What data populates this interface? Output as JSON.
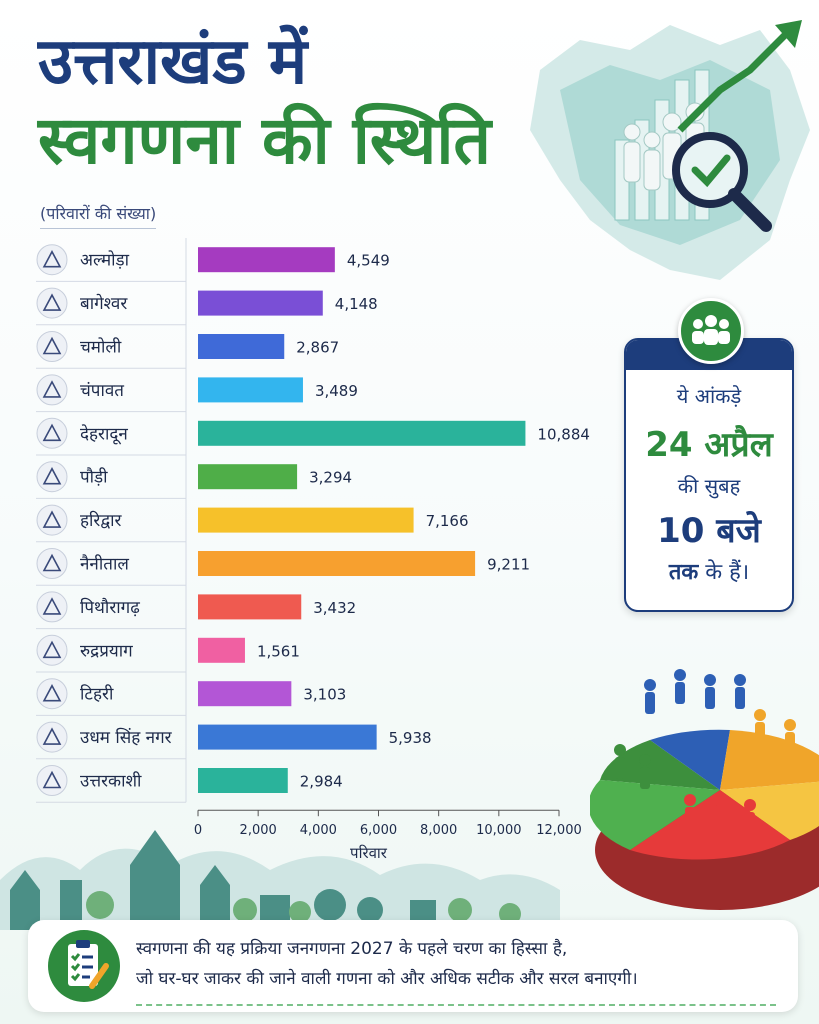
{
  "title_line1": "उत्तराखंड में",
  "title_line2": "स्वगणना की स्थिति",
  "subtitle": "(परिवारों की संख्या)",
  "chart_data": {
    "type": "bar",
    "orientation": "horizontal",
    "categories": [
      "अल्मोड़ा",
      "बागेश्वर",
      "चमोली",
      "चंपावत",
      "देहरादून",
      "पौड़ी",
      "हरिद्वार",
      "नैनीताल",
      "पिथौरागढ़",
      "रुद्रप्रयाग",
      "टिहरी",
      "उधम सिंह नगर",
      "उत्तरकाशी"
    ],
    "values": [
      4549,
      4148,
      2867,
      3489,
      10884,
      3294,
      7166,
      9211,
      3432,
      1561,
      3103,
      5938,
      2984
    ],
    "value_labels": [
      "4,549",
      "4,148",
      "2,867",
      "3,489",
      "10,884",
      "3,294",
      "7,166",
      "9,211",
      "3,432",
      "1,561",
      "3,103",
      "5,938",
      "2,984"
    ],
    "bar_colors": [
      "#a53bc0",
      "#7a4fd6",
      "#3f6ad8",
      "#33b5ee",
      "#2ab39b",
      "#4fae48",
      "#f6c12a",
      "#f7a02f",
      "#ef5a50",
      "#f060a2",
      "#b356d6",
      "#3a78d6",
      "#2ab39b"
    ],
    "xlabel": "परिवार",
    "xlim": [
      0,
      12000
    ],
    "xticks": [
      0,
      2000,
      4000,
      6000,
      8000,
      10000,
      12000
    ],
    "xtick_labels": [
      "0",
      "2,000",
      "4,000",
      "6,000",
      "8,000",
      "10,000",
      "12,000"
    ],
    "grid": false
  },
  "info_box": {
    "line1": "ये आंकड़े",
    "line2": "24 अप्रैल",
    "line3": "की सुबह",
    "line4": "10 बजे",
    "line5_bold": "तक",
    "line5_rest": " के हैं।"
  },
  "footer": {
    "line1": "स्वगणना की यह प्रक्रिया जनगणना 2027 के पहले चरण का हिस्सा है,",
    "line2": "जो घर-घर जाकर की जाने वाली गणना को और अधिक सटीक और सरल बनाएगी।"
  },
  "colors": {
    "title_blue": "#1d3d7c",
    "title_green": "#2e8b3e"
  }
}
